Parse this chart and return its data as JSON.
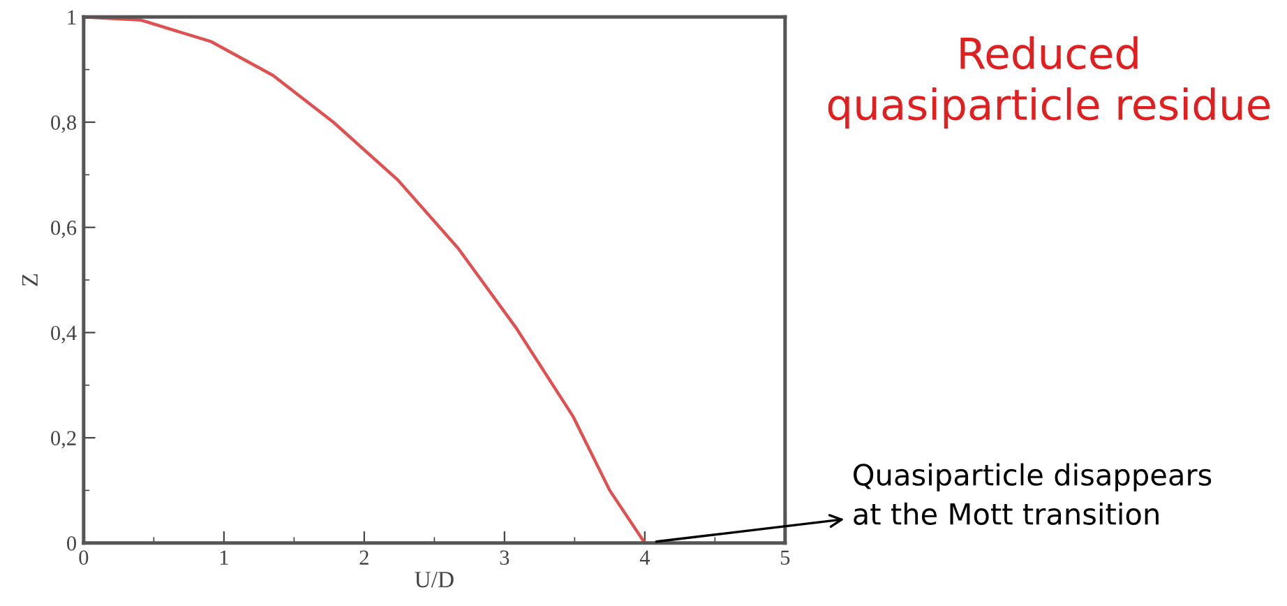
{
  "chart_data": {
    "type": "line",
    "title": "Reduced\nquasiparticle residue",
    "xlabel": "U/D",
    "ylabel": "Z",
    "x": [
      0,
      0.41,
      0.91,
      1.35,
      1.78,
      2.24,
      2.67,
      3.08,
      3.49,
      3.75,
      4
    ],
    "series": [
      {
        "color": "#e05050",
        "values": [
          1,
          0.994,
          0.953,
          0.889,
          0.8,
          0.69,
          0.56,
          0.41,
          0.24,
          0.1,
          0
        ]
      }
    ],
    "xlim": [
      0,
      5
    ],
    "ylim": [
      0,
      1
    ],
    "xticks": [
      0,
      1,
      2,
      3,
      4,
      5
    ],
    "yticks": [
      0,
      {
        "value": 0.2,
        "label": "0,2"
      },
      {
        "value": 0.4,
        "label": "0,4"
      },
      {
        "value": 0.6,
        "label": "0,6"
      },
      {
        "value": 0.8,
        "label": "0,8"
      },
      1
    ],
    "grid": false,
    "marker": "none",
    "line_style": "solid",
    "annotations": [
      {
        "text": "Quasiparticle disappears\nat the Mott transition",
        "x": 4,
        "y": 0
      }
    ]
  }
}
